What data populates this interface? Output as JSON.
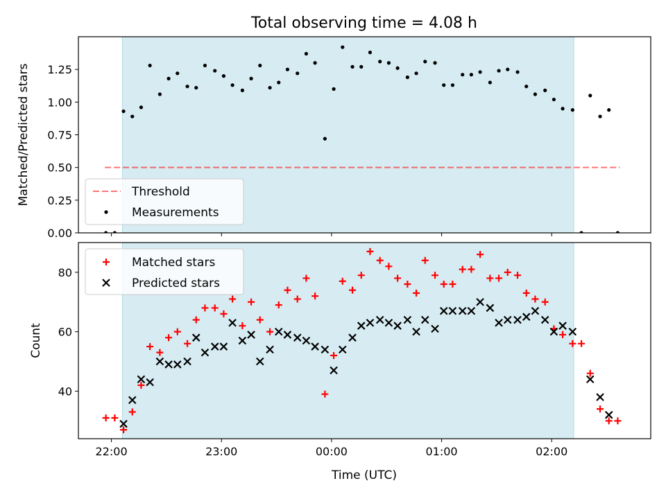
{
  "figure": {
    "title": "Total observing time = 4.08 h",
    "xlabel": "Time (UTC)",
    "x_tick_labels": [
      "22:00",
      "23:00",
      "00:00",
      "01:00",
      "02:00"
    ]
  },
  "colors": {
    "shade": "#add8e6",
    "threshold": "#ff0000",
    "measurements": "#000000",
    "matched": "#ff0000",
    "predicted": "#000000"
  },
  "chart_data": [
    {
      "type": "scatter",
      "title": "Total observing time = 4.08 h",
      "xlabel": "",
      "ylabel": "Matched/Predicted stars",
      "x_unit": "hours since 22:00 UTC",
      "xlim": [
        -0.3,
        4.9
      ],
      "ylim": [
        0.0,
        1.5
      ],
      "y_ticks": [
        0.0,
        0.25,
        0.5,
        0.75,
        1.0,
        1.25
      ],
      "y_tick_labels": [
        "0.00",
        "0.25",
        "0.50",
        "0.75",
        "1.00",
        "1.25"
      ],
      "shaded_interval": [
        0.1,
        4.2
      ],
      "legend_position": "lower-left",
      "threshold": {
        "name": "Threshold",
        "value": 0.5,
        "x_range": [
          -0.06,
          4.62
        ]
      },
      "series": [
        {
          "name": "Measurements",
          "points": [
            [
              -0.05,
              0.0
            ],
            [
              0.03,
              0.0
            ],
            [
              0.11,
              0.93
            ],
            [
              0.19,
              0.89
            ],
            [
              0.27,
              0.96
            ],
            [
              0.35,
              1.28
            ],
            [
              0.44,
              1.06
            ],
            [
              0.52,
              1.18
            ],
            [
              0.6,
              1.22
            ],
            [
              0.69,
              1.12
            ],
            [
              0.77,
              1.11
            ],
            [
              0.85,
              1.28
            ],
            [
              0.94,
              1.24
            ],
            [
              1.02,
              1.2
            ],
            [
              1.1,
              1.13
            ],
            [
              1.19,
              1.09
            ],
            [
              1.27,
              1.18
            ],
            [
              1.35,
              1.28
            ],
            [
              1.44,
              1.11
            ],
            [
              1.52,
              1.15
            ],
            [
              1.6,
              1.25
            ],
            [
              1.69,
              1.22
            ],
            [
              1.77,
              1.37
            ],
            [
              1.85,
              1.3
            ],
            [
              1.94,
              0.72
            ],
            [
              2.02,
              1.1
            ],
            [
              2.1,
              1.42
            ],
            [
              2.19,
              1.27
            ],
            [
              2.27,
              1.27
            ],
            [
              2.35,
              1.38
            ],
            [
              2.44,
              1.31
            ],
            [
              2.52,
              1.3
            ],
            [
              2.6,
              1.26
            ],
            [
              2.69,
              1.19
            ],
            [
              2.77,
              1.22
            ],
            [
              2.85,
              1.31
            ],
            [
              2.94,
              1.3
            ],
            [
              3.02,
              1.13
            ],
            [
              3.1,
              1.13
            ],
            [
              3.19,
              1.21
            ],
            [
              3.27,
              1.21
            ],
            [
              3.35,
              1.23
            ],
            [
              3.44,
              1.15
            ],
            [
              3.52,
              1.24
            ],
            [
              3.6,
              1.25
            ],
            [
              3.69,
              1.23
            ],
            [
              3.77,
              1.12
            ],
            [
              3.85,
              1.06
            ],
            [
              3.94,
              1.09
            ],
            [
              4.02,
              1.02
            ],
            [
              4.1,
              0.95
            ],
            [
              4.19,
              0.94
            ],
            [
              4.27,
              0.0
            ],
            [
              4.35,
              1.05
            ],
            [
              4.44,
              0.89
            ],
            [
              4.52,
              0.94
            ],
            [
              4.6,
              0.0
            ]
          ]
        }
      ]
    },
    {
      "type": "scatter",
      "title": "",
      "xlabel": "Time (UTC)",
      "ylabel": "Count",
      "x_unit": "hours since 22:00 UTC",
      "xlim": [
        -0.3,
        4.9
      ],
      "ylim": [
        24,
        90
      ],
      "y_ticks": [
        40,
        60,
        80
      ],
      "y_tick_labels": [
        "40",
        "60",
        "80"
      ],
      "x_ticks": [
        0,
        1,
        2,
        3,
        4
      ],
      "x_tick_labels": [
        "22:00",
        "23:00",
        "00:00",
        "01:00",
        "02:00"
      ],
      "shaded_interval": [
        0.1,
        4.2
      ],
      "legend_position": "top-left",
      "series": [
        {
          "name": "Matched stars",
          "points": [
            [
              -0.05,
              31
            ],
            [
              0.03,
              31
            ],
            [
              0.11,
              27
            ],
            [
              0.19,
              33
            ],
            [
              0.27,
              42
            ],
            [
              0.35,
              55
            ],
            [
              0.44,
              53
            ],
            [
              0.52,
              58
            ],
            [
              0.6,
              60
            ],
            [
              0.69,
              56
            ],
            [
              0.77,
              64
            ],
            [
              0.85,
              68
            ],
            [
              0.94,
              68
            ],
            [
              1.02,
              66
            ],
            [
              1.1,
              71
            ],
            [
              1.19,
              62
            ],
            [
              1.27,
              70
            ],
            [
              1.35,
              64
            ],
            [
              1.44,
              60
            ],
            [
              1.52,
              69
            ],
            [
              1.6,
              74
            ],
            [
              1.69,
              71
            ],
            [
              1.77,
              78
            ],
            [
              1.85,
              72
            ],
            [
              1.94,
              39
            ],
            [
              2.02,
              52
            ],
            [
              2.1,
              77
            ],
            [
              2.19,
              74
            ],
            [
              2.27,
              79
            ],
            [
              2.35,
              87
            ],
            [
              2.44,
              84
            ],
            [
              2.52,
              82
            ],
            [
              2.6,
              78
            ],
            [
              2.69,
              76
            ],
            [
              2.77,
              73
            ],
            [
              2.85,
              84
            ],
            [
              2.94,
              79
            ],
            [
              3.02,
              76
            ],
            [
              3.1,
              76
            ],
            [
              3.19,
              81
            ],
            [
              3.27,
              81
            ],
            [
              3.35,
              86
            ],
            [
              3.44,
              78
            ],
            [
              3.52,
              78
            ],
            [
              3.6,
              80
            ],
            [
              3.69,
              79
            ],
            [
              3.77,
              73
            ],
            [
              3.85,
              71
            ],
            [
              3.94,
              70
            ],
            [
              4.02,
              61
            ],
            [
              4.1,
              59
            ],
            [
              4.19,
              56
            ],
            [
              4.27,
              56
            ],
            [
              4.35,
              46
            ],
            [
              4.44,
              34
            ],
            [
              4.52,
              30
            ],
            [
              4.6,
              30
            ]
          ]
        },
        {
          "name": "Predicted stars",
          "points": [
            [
              0.11,
              29
            ],
            [
              0.19,
              37
            ],
            [
              0.27,
              44
            ],
            [
              0.35,
              43
            ],
            [
              0.44,
              50
            ],
            [
              0.52,
              49
            ],
            [
              0.6,
              49
            ],
            [
              0.69,
              50
            ],
            [
              0.77,
              58
            ],
            [
              0.85,
              53
            ],
            [
              0.94,
              55
            ],
            [
              1.02,
              55
            ],
            [
              1.1,
              63
            ],
            [
              1.19,
              57
            ],
            [
              1.27,
              59
            ],
            [
              1.35,
              50
            ],
            [
              1.44,
              54
            ],
            [
              1.52,
              60
            ],
            [
              1.6,
              59
            ],
            [
              1.69,
              58
            ],
            [
              1.77,
              57
            ],
            [
              1.85,
              55
            ],
            [
              1.94,
              54
            ],
            [
              2.02,
              47
            ],
            [
              2.1,
              54
            ],
            [
              2.19,
              58
            ],
            [
              2.27,
              62
            ],
            [
              2.35,
              63
            ],
            [
              2.44,
              64
            ],
            [
              2.52,
              63
            ],
            [
              2.6,
              62
            ],
            [
              2.69,
              64
            ],
            [
              2.77,
              60
            ],
            [
              2.85,
              64
            ],
            [
              2.94,
              61
            ],
            [
              3.02,
              67
            ],
            [
              3.1,
              67
            ],
            [
              3.19,
              67
            ],
            [
              3.27,
              67
            ],
            [
              3.35,
              70
            ],
            [
              3.44,
              68
            ],
            [
              3.52,
              63
            ],
            [
              3.6,
              64
            ],
            [
              3.69,
              64
            ],
            [
              3.77,
              65
            ],
            [
              3.85,
              67
            ],
            [
              3.94,
              64
            ],
            [
              4.02,
              60
            ],
            [
              4.1,
              62
            ],
            [
              4.19,
              60
            ],
            [
              4.35,
              44
            ],
            [
              4.44,
              38
            ],
            [
              4.52,
              32
            ]
          ]
        }
      ]
    }
  ]
}
